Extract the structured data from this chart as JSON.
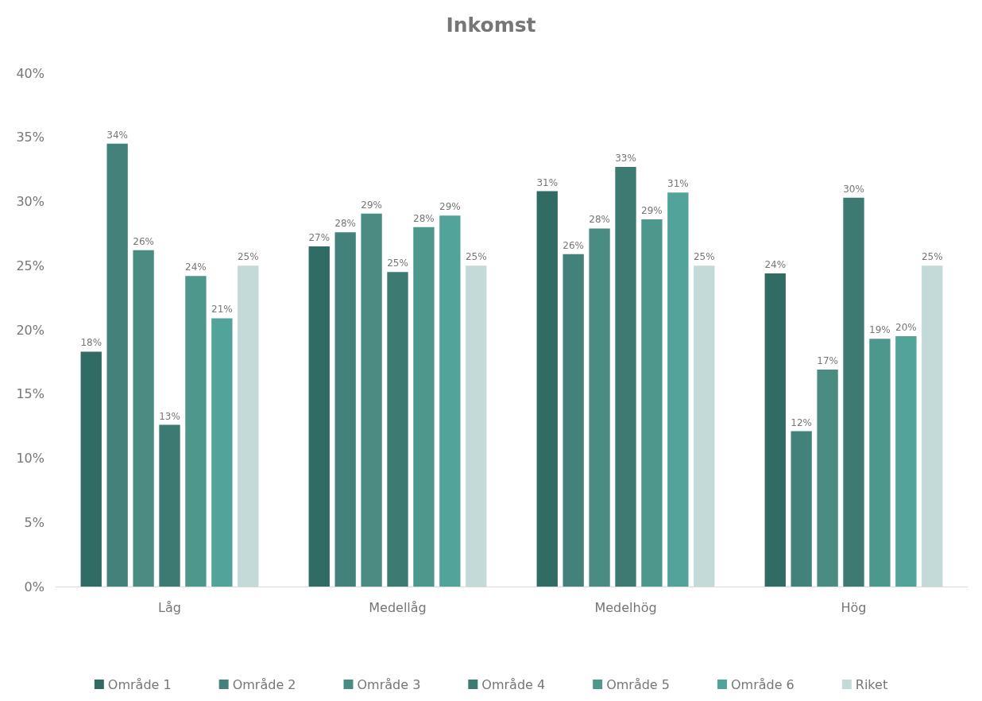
{
  "chart_data": {
    "type": "bar",
    "title": "Inkomst",
    "categories": [
      "Låg",
      "Medellåg",
      "Medelhög",
      "Hög"
    ],
    "series": [
      {
        "name": "Område 1",
        "color": "#306b64",
        "values": [
          18.3,
          26.5,
          30.8,
          24.4
        ],
        "value_labels": [
          "18%",
          "27%",
          "31%",
          "24%"
        ]
      },
      {
        "name": "Område 2",
        "color": "#43827a",
        "values": [
          34.5,
          27.6,
          25.9,
          12.1
        ],
        "value_labels": [
          "34%",
          "28%",
          "26%",
          "12%"
        ]
      },
      {
        "name": "Område 3",
        "color": "#4a8c82",
        "values": [
          26.2,
          29.05,
          27.9,
          16.9
        ],
        "value_labels": [
          "26%",
          "29%",
          "28%",
          "17%"
        ]
      },
      {
        "name": "Område 4",
        "color": "#3d7a72",
        "values": [
          12.6,
          24.5,
          32.7,
          30.3
        ],
        "value_labels": [
          "13%",
          "25%",
          "33%",
          "30%"
        ]
      },
      {
        "name": "Område 5",
        "color": "#4d978d",
        "values": [
          24.2,
          28.0,
          28.6,
          19.3
        ],
        "value_labels": [
          "24%",
          "28%",
          "29%",
          "19%"
        ]
      },
      {
        "name": "Område 6",
        "color": "#52a39a",
        "values": [
          20.9,
          28.9,
          30.7,
          19.5
        ],
        "value_labels": [
          "21%",
          "29%",
          "31%",
          "20%"
        ]
      },
      {
        "name": "Riket",
        "color": "#c3dad8",
        "values": [
          25.0,
          25.0,
          25.0,
          25.0
        ],
        "value_labels": [
          "25%",
          "25%",
          "25%",
          "25%"
        ]
      }
    ],
    "ylim": [
      0,
      40
    ],
    "yticks": [
      {
        "value": 0,
        "label": "0%"
      },
      {
        "value": 5,
        "label": "5%"
      },
      {
        "value": 10,
        "label": "10%"
      },
      {
        "value": 15,
        "label": "15%"
      },
      {
        "value": 20,
        "label": "20%"
      },
      {
        "value": 25,
        "label": "25%"
      },
      {
        "value": 30,
        "label": "30%"
      },
      {
        "value": 35,
        "label": "35%"
      },
      {
        "value": 40,
        "label": "40%"
      }
    ],
    "grid": false,
    "legend": "bottom"
  }
}
